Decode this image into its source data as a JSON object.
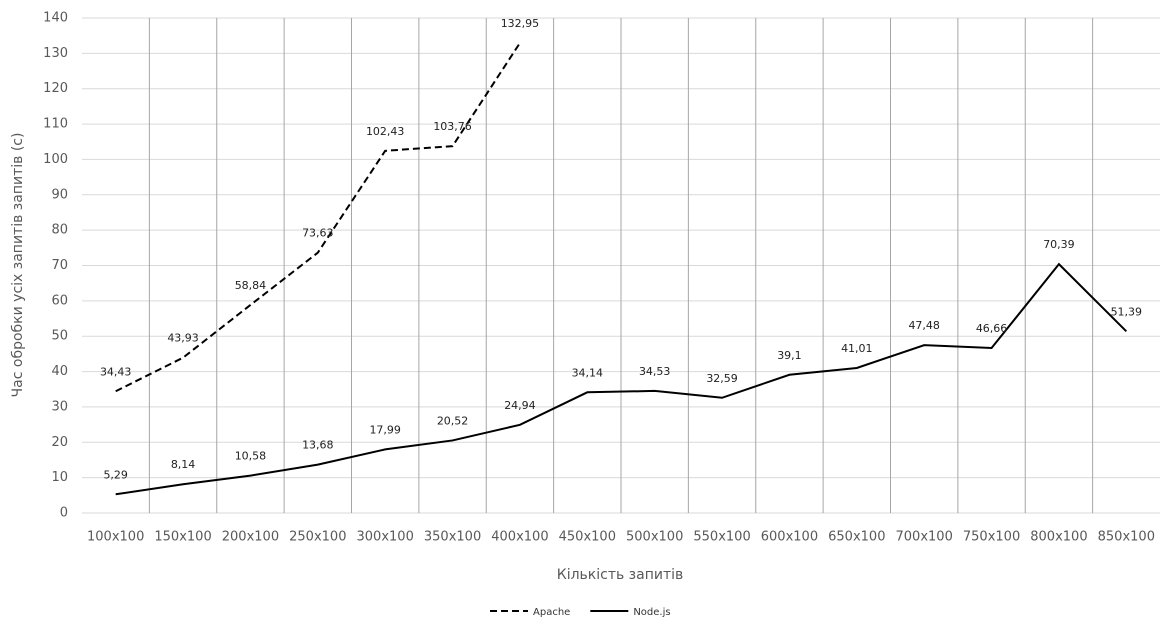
{
  "chart_data": {
    "type": "line",
    "x_label": "Кількість запитів",
    "y_label": "Час обробки усіх запитів запитів (с)",
    "categories": [
      "100x100",
      "150x100",
      "200x100",
      "250x100",
      "300x100",
      "350x100",
      "400x100",
      "450x100",
      "500x100",
      "550x100",
      "600x100",
      "650x100",
      "700x100",
      "750x100",
      "800x100",
      "850x100"
    ],
    "series": [
      {
        "name": "Apache",
        "color": "#000000",
        "dash": "dashed",
        "values": [
          34.43,
          43.93,
          58.84,
          73.63,
          102.43,
          103.76,
          132.95,
          null,
          null,
          null,
          null,
          null,
          null,
          null,
          null,
          null
        ],
        "value_labels": [
          "34,43",
          "43,93",
          "58,84",
          "73,63",
          "102,43",
          "103,76",
          "132,95",
          null,
          null,
          null,
          null,
          null,
          null,
          null,
          null,
          null
        ]
      },
      {
        "name": "Node.js",
        "color": "#000000",
        "dash": "solid",
        "values": [
          5.29,
          8.14,
          10.58,
          13.68,
          17.99,
          20.52,
          24.94,
          34.14,
          34.53,
          32.59,
          39.1,
          41.01,
          47.48,
          46.66,
          70.39,
          51.39
        ],
        "value_labels": [
          "5,29",
          "8,14",
          "10,58",
          "13,68",
          "17,99",
          "20,52",
          "24,94",
          "34,14",
          "34,53",
          "32,59",
          "39,1",
          "41,01",
          "47,48",
          "46,66",
          "70,39",
          "51,39"
        ]
      }
    ],
    "ylim": [
      0,
      140
    ],
    "yticks": [
      0,
      10,
      20,
      30,
      40,
      50,
      60,
      70,
      80,
      90,
      100,
      110,
      120,
      130,
      140
    ],
    "grid": true,
    "legend": "bottom"
  }
}
